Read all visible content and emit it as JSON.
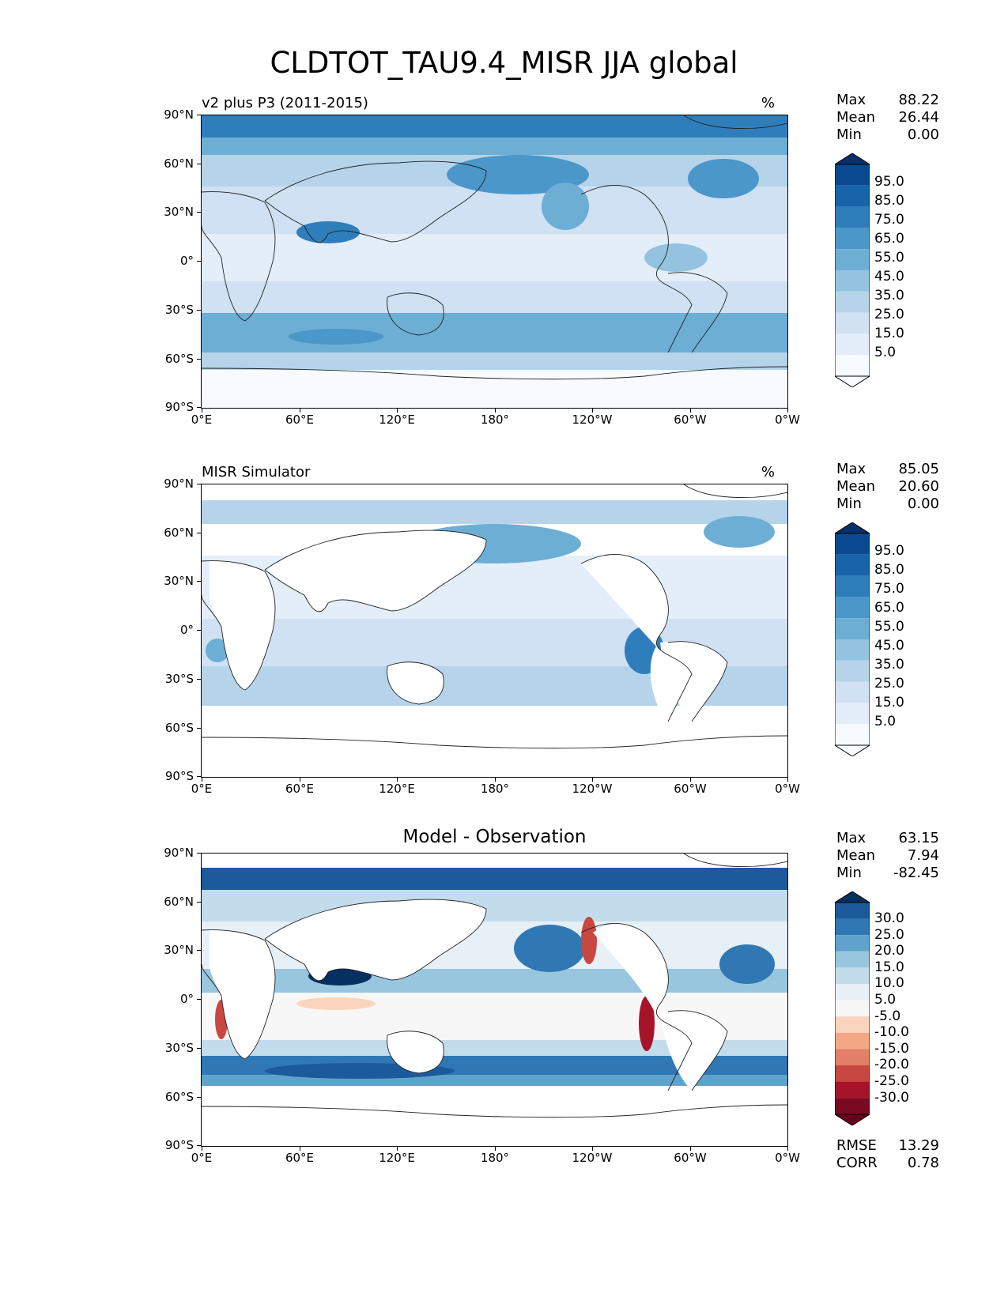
{
  "title": "CLDTOT_TAU9.4_MISR JJA global",
  "lat_ticks": [
    "90°N",
    "60°N",
    "30°N",
    "0°",
    "30°S",
    "60°S",
    "90°S"
  ],
  "lon_ticks": [
    "0°E",
    "60°E",
    "120°E",
    "180°",
    "120°W",
    "60°W",
    "0°W"
  ],
  "panels": [
    {
      "title": "v2 plus P3 (2011-2015)",
      "units": "%",
      "stats": {
        "max_label": "Max",
        "max": "88.22",
        "mean_label": "Mean",
        "mean": "26.44",
        "min_label": "Min",
        "min": "0.00"
      },
      "colorbar_levels": [
        "95.0",
        "85.0",
        "75.0",
        "65.0",
        "55.0",
        "45.0",
        "35.0",
        "25.0",
        "15.0",
        "5.0"
      ]
    },
    {
      "title": "MISR Simulator",
      "units": "%",
      "stats": {
        "max_label": "Max",
        "max": "85.05",
        "mean_label": "Mean",
        "mean": "20.60",
        "min_label": "Min",
        "min": "0.00"
      },
      "colorbar_levels": [
        "95.0",
        "85.0",
        "75.0",
        "65.0",
        "55.0",
        "45.0",
        "35.0",
        "25.0",
        "15.0",
        "5.0"
      ]
    },
    {
      "title": "Model - Observation",
      "stats": {
        "max_label": "Max",
        "max": "63.15",
        "mean_label": "Mean",
        "mean": "7.94",
        "min_label": "Min",
        "min": "-82.45"
      },
      "colorbar_levels": [
        "30.0",
        "25.0",
        "20.0",
        "15.0",
        "10.0",
        "5.0",
        "-5.0",
        "-10.0",
        "-15.0",
        "-20.0",
        "-25.0",
        "-30.0"
      ],
      "rmse_label": "RMSE",
      "rmse": "13.29",
      "corr_label": "CORR",
      "corr": "0.78"
    }
  ],
  "colors": {
    "blues": [
      "#f7fbff",
      "#e3eef9",
      "#cfe1f2",
      "#b5d4e9",
      "#93c3df",
      "#6daed5",
      "#4b97c9",
      "#2f7ebc",
      "#1864aa",
      "#0a4a90",
      "#08306b"
    ],
    "diverging": [
      "#67001f",
      "#a51429",
      "#c94741",
      "#e17f67",
      "#f4a784",
      "#fbd4bd",
      "#f7f7f7",
      "#e7f0f6",
      "#c3dcec",
      "#98c6df",
      "#5fa2cb",
      "#2f78b4",
      "#1c5a9c",
      "#053061"
    ]
  }
}
